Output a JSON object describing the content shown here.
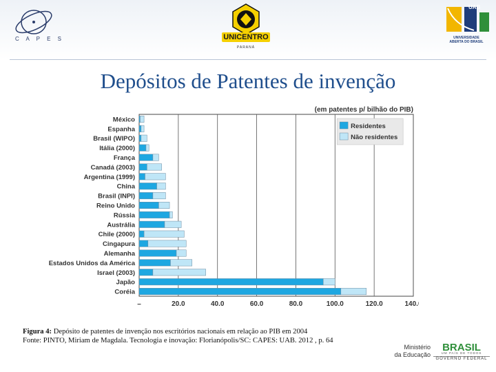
{
  "header": {
    "capes_label": "C A P E S",
    "unicentro_label": "UNICENTRO",
    "unicentro_sub": "PARANÁ",
    "uab_label": "UAB",
    "uab_name_line1": "UNIVERSIDADE",
    "uab_name_line2": "ABERTA DO BRASIL"
  },
  "slide_title": "Depósitos de Patentes de invenção",
  "chart_data": {
    "type": "bar",
    "orientation": "horizontal",
    "stacked": true,
    "unit_label": "(em patentes p/ bilhão do PIB)",
    "categories": [
      "México",
      "Espanha",
      "Brasil (WIPO)",
      "Itália (2000)",
      "França",
      "Canadá (2003)",
      "Argentina (1999)",
      "China",
      "Brasil (INPI)",
      "Reino Unido",
      "Rússia",
      "Austrália",
      "Chile (2000)",
      "Cingapura",
      "Alemanha",
      "Estados Unidos da América",
      "Israel (2003)",
      "Japão",
      "Coréia"
    ],
    "series": [
      {
        "name": "Residentes",
        "color": "#1ea7e1",
        "values": [
          0.5,
          1.0,
          1.0,
          3.5,
          7.0,
          4.0,
          3.0,
          9.0,
          7.0,
          10.0,
          15.5,
          13.0,
          2.5,
          4.5,
          19.0,
          16.0,
          7.0,
          94.0,
          103.0
        ]
      },
      {
        "name": "Não residentes",
        "color": "#bfe6f7",
        "values": [
          2.0,
          1.5,
          3.0,
          1.5,
          3.0,
          7.5,
          10.5,
          4.5,
          6.5,
          5.5,
          1.5,
          8.5,
          20.5,
          19.5,
          5.0,
          11.0,
          27.0,
          6.0,
          13.0
        ]
      }
    ],
    "xticks": [
      "–",
      "20.0",
      "40.0",
      "60.0",
      "80.0",
      "100.0",
      "120.0",
      "140.0"
    ],
    "xlim": [
      0,
      140
    ],
    "legend": [
      "Residentes",
      "Não residentes"
    ],
    "legend_position": "top-right",
    "grid": true
  },
  "caption": {
    "figure_label": "Figura 4:",
    "figure_text": " Depósito de patentes de invenção nos escritórios nacionais em relação ao PIB em 2004",
    "source": "Fonte: PINTO, Miriam de Magdala. Tecnologia e inovação: Florianópolis/SC: CAPES: UAB. 2012 , p. 64"
  },
  "footer": {
    "mec_line1": "Ministério",
    "mec_line2": "da Educação",
    "brasil_word": "BRASIL",
    "brasil_tag": "UM PAÍS DE TODOS",
    "gov_text": "GOVERNO FEDERAL"
  }
}
